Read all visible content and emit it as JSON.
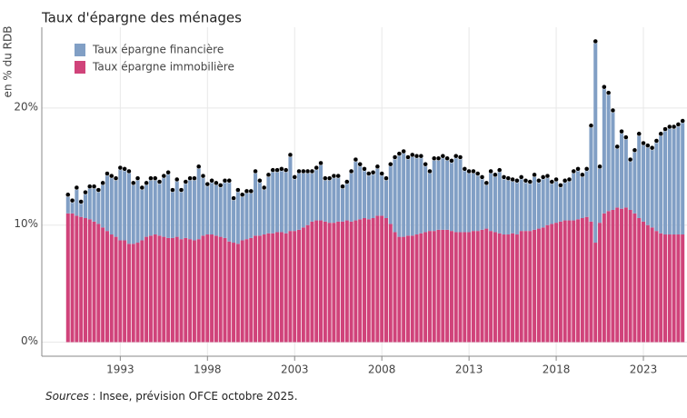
{
  "chart_data": {
    "type": "stacked_bar",
    "title": "Taux d'épargne des ménages",
    "y_label": "en % du RDB",
    "note_label": "Sources",
    "note_text": " : Insee, prévision OFCE octobre 2025.",
    "legend": "top-left",
    "grid": true,
    "xlim": [
      1988.5,
      2025.5
    ],
    "xticks": [
      1993,
      1998,
      2003,
      2008,
      2013,
      2018,
      2023
    ],
    "ylim": [
      -1.2,
      26.9
    ],
    "yticks": [
      {
        "value": 0,
        "label": "0%"
      },
      {
        "value": 10,
        "label": "10%"
      },
      {
        "value": 20,
        "label": "20%"
      }
    ],
    "x": [
      1990,
      1990.25,
      1990.5,
      1990.75,
      1991,
      1991.25,
      1991.5,
      1991.75,
      1992,
      1992.25,
      1992.5,
      1992.75,
      1993,
      1993.25,
      1993.5,
      1993.75,
      1994,
      1994.25,
      1994.5,
      1994.75,
      1995,
      1995.25,
      1995.5,
      1995.75,
      1996,
      1996.25,
      1996.5,
      1996.75,
      1997,
      1997.25,
      1997.5,
      1997.75,
      1998,
      1998.25,
      1998.5,
      1998.75,
      1999,
      1999.25,
      1999.5,
      1999.75,
      2000,
      2000.25,
      2000.5,
      2000.75,
      2001,
      2001.25,
      2001.5,
      2001.75,
      2002,
      2002.25,
      2002.5,
      2002.75,
      2003,
      2003.25,
      2003.5,
      2003.75,
      2004,
      2004.25,
      2004.5,
      2004.75,
      2005,
      2005.25,
      2005.5,
      2005.75,
      2006,
      2006.25,
      2006.5,
      2006.75,
      2007,
      2007.25,
      2007.5,
      2007.75,
      2008,
      2008.25,
      2008.5,
      2008.75,
      2009,
      2009.25,
      2009.5,
      2009.75,
      2010,
      2010.25,
      2010.5,
      2010.75,
      2011,
      2011.25,
      2011.5,
      2011.75,
      2012,
      2012.25,
      2012.5,
      2012.75,
      2013,
      2013.25,
      2013.5,
      2013.75,
      2014,
      2014.25,
      2014.5,
      2014.75,
      2015,
      2015.25,
      2015.5,
      2015.75,
      2016,
      2016.25,
      2016.5,
      2016.75,
      2017,
      2017.25,
      2017.5,
      2017.75,
      2018,
      2018.25,
      2018.5,
      2018.75,
      2019,
      2019.25,
      2019.5,
      2019.75,
      2020,
      2020.25,
      2020.5,
      2020.75,
      2021,
      2021.25,
      2021.5,
      2021.75,
      2022,
      2022.25,
      2022.5,
      2022.75,
      2023,
      2023.25,
      2023.5,
      2023.75,
      2024,
      2024.25,
      2024.5,
      2024.75,
      2025,
      2025.25
    ],
    "series": [
      {
        "name": "Taux épargne financière",
        "color": "#819fc5",
        "values": [
          1.6,
          1.1,
          2.4,
          1.3,
          2.2,
          2.8,
          3.0,
          2.9,
          3.8,
          4.9,
          5.0,
          5.0,
          6.2,
          6.1,
          6.2,
          5.2,
          5.5,
          4.5,
          4.6,
          4.9,
          4.8,
          4.6,
          5.2,
          5.6,
          4.1,
          4.9,
          4.2,
          4.8,
          5.2,
          5.3,
          6.2,
          5.1,
          4.3,
          4.6,
          4.5,
          4.4,
          4.9,
          5.2,
          3.8,
          4.6,
          3.9,
          4.1,
          4.0,
          5.5,
          4.7,
          4.0,
          5.0,
          5.4,
          5.3,
          5.4,
          5.4,
          6.5,
          4.6,
          5.0,
          4.8,
          4.6,
          4.3,
          4.5,
          4.9,
          3.7,
          3.8,
          4.0,
          3.9,
          3.0,
          3.3,
          4.3,
          5.2,
          4.7,
          4.2,
          3.9,
          3.9,
          4.2,
          3.6,
          3.4,
          5.1,
          6.4,
          7.1,
          7.3,
          6.7,
          6.9,
          6.7,
          6.6,
          5.8,
          5.1,
          6.2,
          6.1,
          6.3,
          6.1,
          6.0,
          6.5,
          6.4,
          5.4,
          5.2,
          5.1,
          4.9,
          4.5,
          3.9,
          5.1,
          4.9,
          5.4,
          4.9,
          4.8,
          4.6,
          4.6,
          4.6,
          4.3,
          4.2,
          4.7,
          4.1,
          4.3,
          4.2,
          3.6,
          3.7,
          3.1,
          3.4,
          3.5,
          4.2,
          4.3,
          3.7,
          4.1,
          8.2,
          17.2,
          4.8,
          10.8,
          10.1,
          8.5,
          5.2,
          6.6,
          6.0,
          4.3,
          5.4,
          7.2,
          6.7,
          6.8,
          6.8,
          7.7,
          8.5,
          9.0,
          9.2,
          9.2,
          9.4,
          9.7
        ]
      },
      {
        "name": "Taux épargne immobilière",
        "color": "#d0437a",
        "values": [
          11.0,
          11.0,
          10.8,
          10.7,
          10.6,
          10.5,
          10.3,
          10.1,
          9.8,
          9.5,
          9.2,
          9.0,
          8.7,
          8.7,
          8.4,
          8.4,
          8.5,
          8.7,
          9.0,
          9.1,
          9.2,
          9.1,
          9.0,
          8.9,
          8.9,
          9.0,
          8.8,
          8.9,
          8.8,
          8.7,
          8.8,
          9.1,
          9.2,
          9.2,
          9.1,
          9.0,
          8.9,
          8.6,
          8.5,
          8.4,
          8.7,
          8.8,
          8.9,
          9.1,
          9.1,
          9.2,
          9.3,
          9.3,
          9.4,
          9.4,
          9.3,
          9.5,
          9.5,
          9.6,
          9.8,
          10.0,
          10.3,
          10.4,
          10.4,
          10.3,
          10.2,
          10.2,
          10.3,
          10.3,
          10.4,
          10.3,
          10.4,
          10.5,
          10.6,
          10.5,
          10.6,
          10.8,
          10.8,
          10.6,
          10.1,
          9.4,
          9.0,
          9.0,
          9.1,
          9.1,
          9.2,
          9.3,
          9.4,
          9.5,
          9.5,
          9.6,
          9.6,
          9.6,
          9.5,
          9.4,
          9.4,
          9.4,
          9.4,
          9.5,
          9.5,
          9.6,
          9.7,
          9.5,
          9.4,
          9.3,
          9.2,
          9.2,
          9.3,
          9.2,
          9.5,
          9.5,
          9.5,
          9.6,
          9.7,
          9.8,
          10.0,
          10.1,
          10.2,
          10.3,
          10.4,
          10.4,
          10.4,
          10.5,
          10.6,
          10.7,
          10.3,
          8.5,
          10.2,
          11.0,
          11.2,
          11.3,
          11.5,
          11.4,
          11.5,
          11.3,
          11.0,
          10.6,
          10.3,
          10.0,
          9.8,
          9.5,
          9.3,
          9.2,
          9.2,
          9.2,
          9.2,
          9.2
        ]
      }
    ]
  }
}
